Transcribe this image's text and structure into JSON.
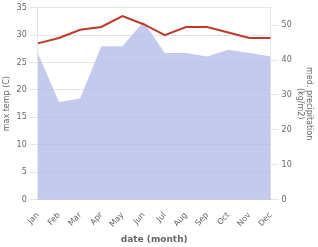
{
  "chart_data": {
    "type": "line",
    "xlabel": "date (month)",
    "ylabel": "max temp (C)",
    "y2label": "med. precipitation\n(kg/m2)",
    "categories": [
      "Jan",
      "Feb",
      "Mar",
      "Apr",
      "May",
      "Jun",
      "Jul",
      "Aug",
      "Sep",
      "Oct",
      "Nov",
      "Dec"
    ],
    "series": [
      {
        "type": "area",
        "axis": "y2",
        "color": "#b0b8e8",
        "values": [
          42,
          28,
          29,
          44,
          44,
          51,
          42,
          42,
          41,
          43,
          42,
          41
        ]
      },
      {
        "type": "line",
        "color": "#c0392b",
        "values": [
          28.5,
          29.5,
          31.0,
          31.5,
          33.5,
          32.0,
          30.0,
          31.5,
          31.5,
          30.5,
          29.5,
          29.5
        ]
      }
    ],
    "ylim": [
      0,
      35
    ],
    "yticks": [
      0,
      5,
      10,
      15,
      20,
      25,
      30,
      35
    ],
    "y2lim": [
      0,
      55
    ],
    "y2ticks": [
      0,
      10,
      20,
      30,
      40,
      50
    ],
    "grid": true
  }
}
